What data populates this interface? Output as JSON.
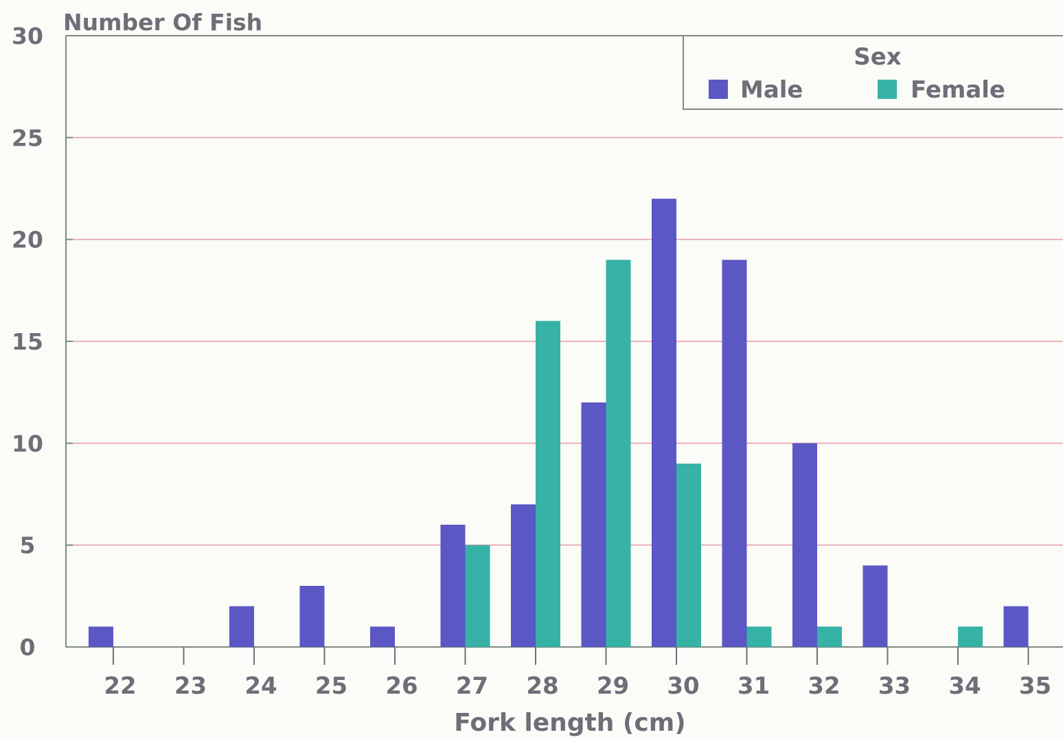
{
  "chart_data": {
    "type": "bar",
    "y_axis_title": "Number Of Fish",
    "xlabel": "Fork length (cm)",
    "categories": [
      "22",
      "23",
      "24",
      "25",
      "26",
      "27",
      "28",
      "29",
      "30",
      "31",
      "32",
      "33",
      "34",
      "35"
    ],
    "series": [
      {
        "name": "Male",
        "color": "#5b57c4",
        "values": [
          1,
          0,
          2,
          3,
          1,
          6,
          7,
          12,
          22,
          19,
          10,
          4,
          0,
          2
        ]
      },
      {
        "name": "Female",
        "color": "#36b2a6",
        "values": [
          0,
          0,
          0,
          0,
          0,
          5,
          16,
          19,
          9,
          1,
          1,
          0,
          1,
          0
        ]
      }
    ],
    "ylim": [
      0,
      30
    ],
    "yticks": [
      "0",
      "5",
      "10",
      "15",
      "20",
      "25",
      "30"
    ],
    "legend": {
      "title": "Sex",
      "position": "top-right"
    },
    "grid": true,
    "gridline_color": "#e79aa4"
  }
}
